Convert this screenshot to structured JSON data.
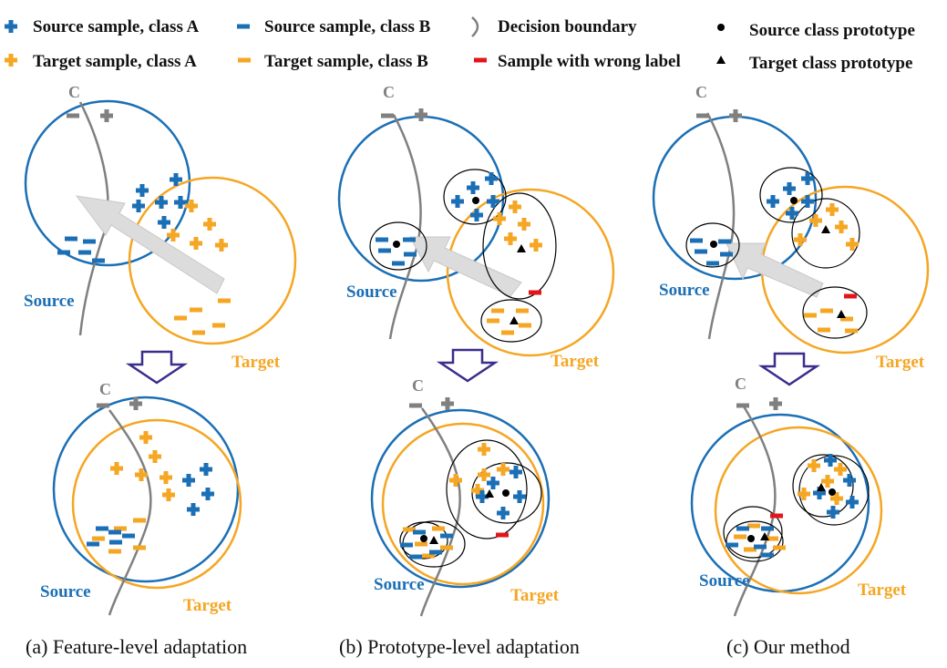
{
  "colors": {
    "source": "#1b6fb5",
    "target": "#f5a623",
    "boundary": "#808080",
    "wrong": "#e3141b",
    "arrow_fill": "#dcdcdc",
    "down_arrow": "#3a2e8c"
  },
  "legend": {
    "source_a": "Source sample, class A",
    "source_b": "Source sample, class B",
    "boundary": "Decision boundary",
    "source_proto": "Source class prototype",
    "target_a": "Target sample, class A",
    "target_b": "Target sample, class B",
    "wrong": "Sample with wrong label",
    "target_proto": "Target class prototype"
  },
  "panels": [
    {
      "caption": "(a) Feature-level adaptation",
      "source_label": "Source",
      "target_label": "Target",
      "boundary_label": "C"
    },
    {
      "caption": "(b) Prototype-level adaptation",
      "source_label": "Source",
      "target_label": "Target",
      "boundary_label": "C"
    },
    {
      "caption": "(c) Our method",
      "source_label": "Source",
      "target_label": "Target",
      "boundary_label": "C"
    }
  ]
}
